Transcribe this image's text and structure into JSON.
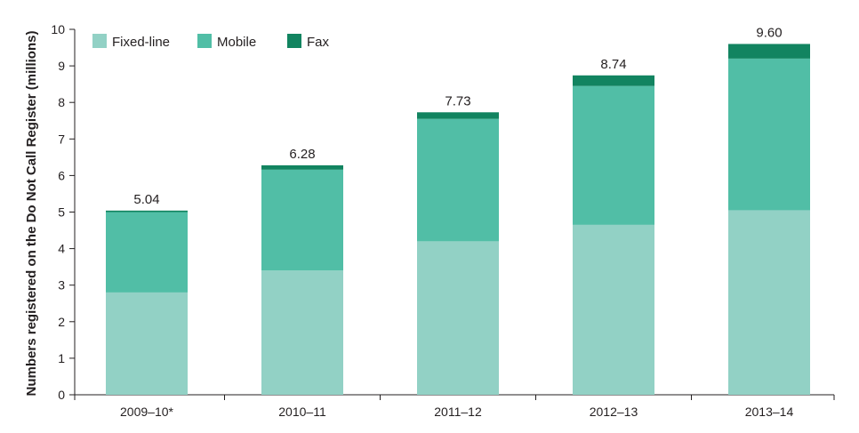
{
  "chart_data": {
    "type": "bar",
    "stacked": true,
    "categories": [
      "2009–10*",
      "2010–11",
      "2011–12",
      "2012–13",
      "2013–14"
    ],
    "series": [
      {
        "name": "Fixed-line",
        "color": "#92d1c5",
        "values": [
          2.8,
          3.4,
          4.2,
          4.65,
          5.05
        ]
      },
      {
        "name": "Mobile",
        "color": "#51bea6",
        "values": [
          2.2,
          2.76,
          3.35,
          3.8,
          4.15
        ]
      },
      {
        "name": "Fax",
        "color": "#128460",
        "values": [
          0.04,
          0.12,
          0.18,
          0.29,
          0.4
        ]
      }
    ],
    "totals": [
      "5.04",
      "6.28",
      "7.73",
      "8.74",
      "9.60"
    ],
    "ylabel": "Numbers registered on the Do Not Call Register (millions)",
    "xlabel": "",
    "ylim": [
      0,
      10
    ],
    "yticks": [
      "0",
      "1",
      "2",
      "3",
      "4",
      "5",
      "6",
      "7",
      "8",
      "9",
      "10"
    ],
    "grid": false,
    "legend_position": "top-left"
  }
}
